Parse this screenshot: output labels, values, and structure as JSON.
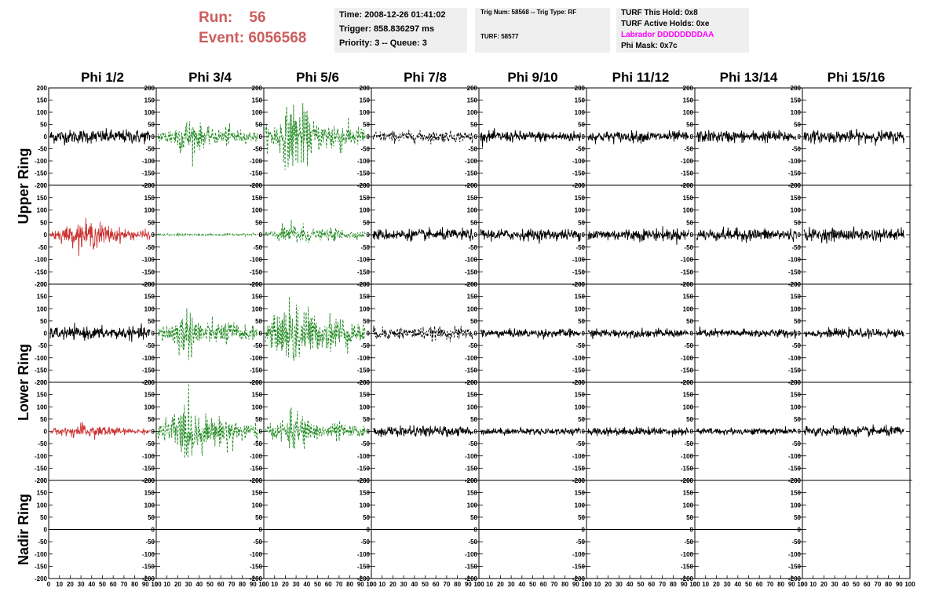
{
  "run_label": "Run:",
  "run_value": "56",
  "event_label": "Event:",
  "event_value": "6056568",
  "info": {
    "time": "Time: 2008-12-26 01:41:02",
    "trigger": "Trigger: 858.836297 ms",
    "priority": "Priority: 3 -- Queue: 3"
  },
  "trig": {
    "line": "Trig Num: 58568 -- Trig Type: RF",
    "turf": "TURF: 58577"
  },
  "turf_status": {
    "this_hold": "TURF This Hold: 0x8",
    "active_holds": "TURF Active Holds: 0xe",
    "labrador": "Labrador DDDDDDDDAA",
    "phi_mask": "Phi Mask: 0x7c"
  },
  "phi_headers": [
    "Phi 1/2",
    "Phi 3/4",
    "Phi 5/6",
    "Phi 7/8",
    "Phi 9/10",
    "Phi 11/12",
    "Phi 13/14",
    "Phi 15/16"
  ],
  "ring_labels": {
    "upper": "Upper Ring",
    "lower": "Lower Ring",
    "nadir": "Nadir Ring"
  },
  "y_ticks": [
    "200",
    "150",
    "100",
    "50",
    "0",
    "-50",
    "-100",
    "-150",
    "-200"
  ],
  "x_ticks": [
    "0",
    "10",
    "20",
    "30",
    "40",
    "50",
    "60",
    "70",
    "80",
    "90",
    "100"
  ],
  "colors": {
    "red": "#cc3333",
    "green": "#228b22",
    "black": "#000000",
    "label_red": "#cd5c5c",
    "magenta": "#ff00ff"
  },
  "waveform_styles": [
    [
      "black",
      "green",
      "green",
      "black-dashed",
      "black",
      "black",
      "black",
      "black"
    ],
    [
      "red",
      "green",
      "green",
      "black",
      "black",
      "black",
      "black",
      "black"
    ],
    [
      "black",
      "green",
      "green",
      "black-dashed",
      "black",
      "black",
      "black",
      "black"
    ],
    [
      "red",
      "green",
      "green",
      "black",
      "black",
      "black",
      "black",
      "black"
    ],
    [
      "flat",
      "flat",
      "flat",
      "flat",
      "flat",
      "flat",
      "flat",
      "none"
    ]
  ],
  "waveform_amplitudes": [
    [
      25,
      55,
      100,
      20,
      20,
      20,
      22,
      22
    ],
    [
      40,
      4,
      35,
      20,
      20,
      22,
      22,
      22
    ],
    [
      22,
      70,
      110,
      22,
      15,
      15,
      15,
      15
    ],
    [
      22,
      90,
      55,
      18,
      12,
      15,
      12,
      18
    ],
    [
      0,
      0,
      0,
      0,
      0,
      0,
      0,
      0
    ]
  ]
}
